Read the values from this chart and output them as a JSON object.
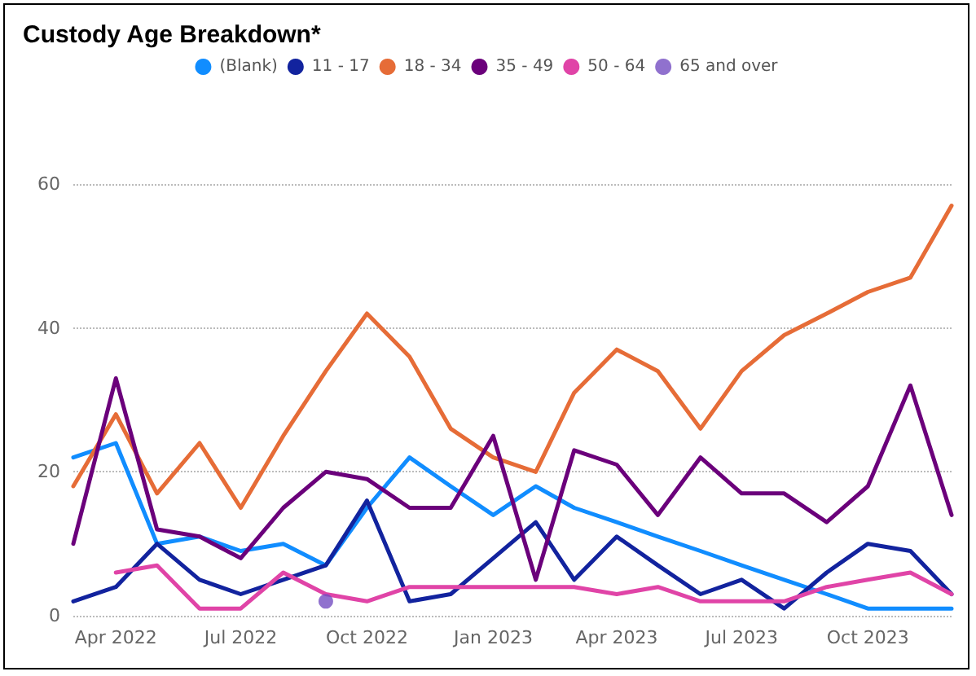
{
  "chart_data": {
    "type": "line",
    "title": "Custody Age Breakdown*",
    "x": [
      "2022-03",
      "2022-04",
      "2022-05",
      "2022-06",
      "2022-07",
      "2022-08",
      "2022-09",
      "2022-10",
      "2022-11",
      "2022-12",
      "2023-01",
      "2023-02",
      "2023-03",
      "2023-04",
      "2023-05",
      "2023-06",
      "2023-07",
      "2023-08",
      "2023-09",
      "2023-10",
      "2023-11",
      "2023-12"
    ],
    "series": [
      {
        "name": "(Blank)",
        "color": "#118dff",
        "values": [
          22,
          24,
          10,
          11,
          9,
          10,
          7,
          15,
          22,
          18,
          14,
          18,
          15,
          13,
          11,
          9,
          7,
          5,
          3,
          1,
          1,
          1
        ]
      },
      {
        "name": "11 - 17",
        "color": "#12239e",
        "values": [
          2,
          4,
          10,
          5,
          3,
          5,
          7,
          16,
          2,
          3,
          8,
          13,
          5,
          11,
          7,
          3,
          5,
          1,
          6,
          10,
          9,
          3
        ]
      },
      {
        "name": "18 - 34",
        "color": "#e66c37",
        "values": [
          18,
          28,
          17,
          24,
          15,
          25,
          34,
          42,
          36,
          26,
          22,
          20,
          31,
          37,
          34,
          26,
          34,
          39,
          42,
          45,
          47,
          57
        ]
      },
      {
        "name": "35 - 49",
        "color": "#6b007b",
        "values": [
          10,
          33,
          12,
          11,
          8,
          15,
          20,
          19,
          15,
          15,
          25,
          5,
          23,
          21,
          14,
          22,
          17,
          17,
          13,
          18,
          32,
          14
        ]
      },
      {
        "name": "50 - 64",
        "color": "#e044a7",
        "values": [
          null,
          6,
          7,
          1,
          1,
          6,
          3,
          2,
          4,
          4,
          4,
          4,
          4,
          3,
          4,
          2,
          2,
          2,
          4,
          5,
          6,
          3
        ]
      },
      {
        "name": "65 and over",
        "color": "#744ec2",
        "type": "scatter",
        "marker": "circle",
        "x": [
          "2022-09"
        ],
        "values": [
          2
        ]
      }
    ],
    "xlim": [
      "2022-03",
      "2023-12"
    ],
    "xticks": [
      {
        "value": "2022-04",
        "label": "Apr 2022"
      },
      {
        "value": "2022-07",
        "label": "Jul 2022"
      },
      {
        "value": "2022-10",
        "label": "Oct 2022"
      },
      {
        "value": "2023-01",
        "label": "Jan 2023"
      },
      {
        "value": "2023-04",
        "label": "Apr 2023"
      },
      {
        "value": "2023-07",
        "label": "Jul 2023"
      },
      {
        "value": "2023-10",
        "label": "Oct 2023"
      }
    ],
    "ylim": [
      0,
      60
    ],
    "yticks": [
      0,
      20,
      40,
      60
    ],
    "grid": "y",
    "legend": "top",
    "marker": "none",
    "line_style": "solid"
  }
}
